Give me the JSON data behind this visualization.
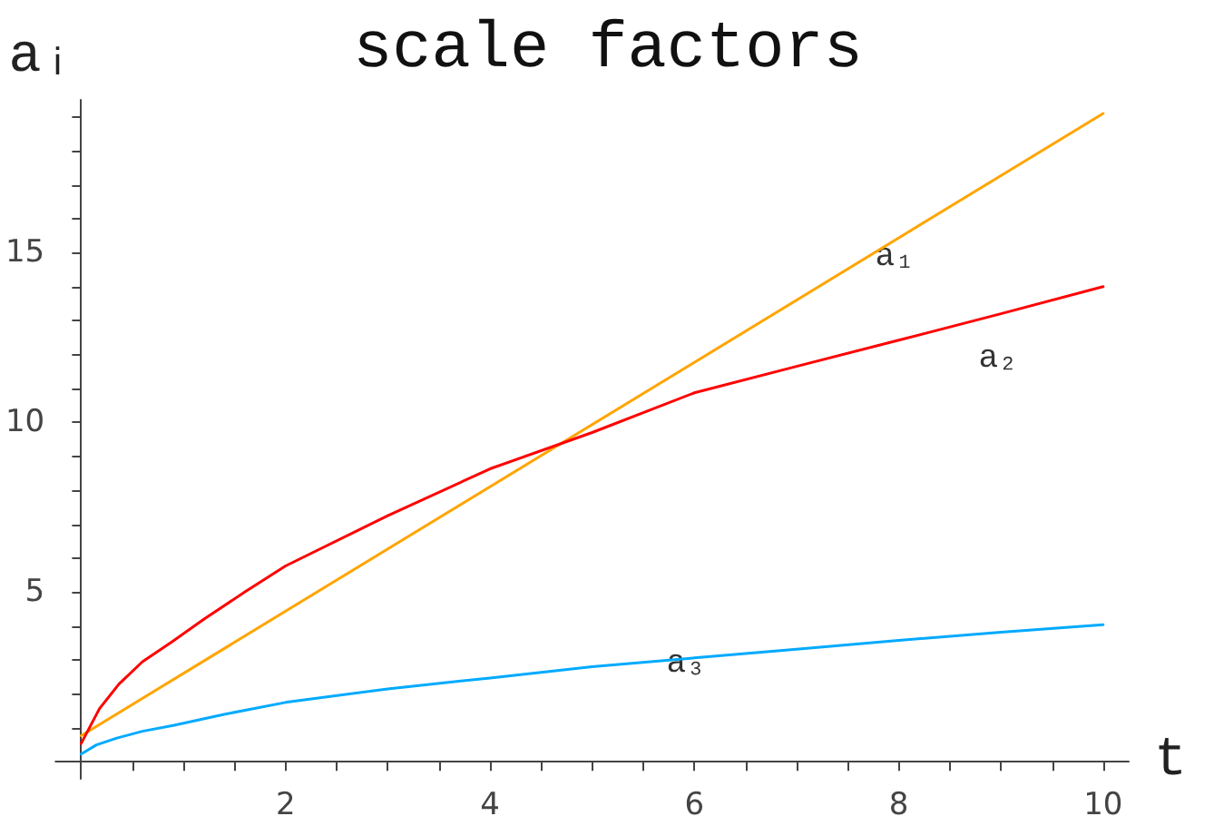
{
  "chart_data": {
    "type": "line",
    "title": "scale factors",
    "xlabel": "t",
    "ylabel": "aᵢ",
    "xlim": [
      -0.25,
      10.25
    ],
    "ylim": [
      -0.5,
      19.5
    ],
    "xticks": [
      {
        "value": 0.5,
        "label": null
      },
      {
        "value": 1,
        "label": null
      },
      {
        "value": 1.5,
        "label": null
      },
      2,
      {
        "value": 2.5,
        "label": null
      },
      {
        "value": 3,
        "label": null
      },
      {
        "value": 3.5,
        "label": null
      },
      4,
      {
        "value": 4.5,
        "label": null
      },
      {
        "value": 5,
        "label": null
      },
      {
        "value": 5.5,
        "label": null
      },
      6,
      {
        "value": 6.5,
        "label": null
      },
      {
        "value": 7,
        "label": null
      },
      {
        "value": 7.5,
        "label": null
      },
      8,
      {
        "value": 8.5,
        "label": null
      },
      {
        "value": 9,
        "label": null
      },
      {
        "value": 9.5,
        "label": null
      },
      10
    ],
    "yticks": [
      {
        "value": 1,
        "label": null
      },
      {
        "value": 2,
        "label": null
      },
      {
        "value": 3,
        "label": null
      },
      {
        "value": 4,
        "label": null
      },
      5,
      {
        "value": 6,
        "label": null
      },
      {
        "value": 7,
        "label": null
      },
      {
        "value": 8,
        "label": null
      },
      {
        "value": 9,
        "label": null
      },
      10,
      {
        "value": 11,
        "label": null
      },
      {
        "value": 12,
        "label": null
      },
      {
        "value": 13,
        "label": null
      },
      {
        "value": 14,
        "label": null
      },
      15,
      {
        "value": 16,
        "label": null
      },
      {
        "value": 17,
        "label": null
      },
      {
        "value": 18,
        "label": null
      },
      {
        "value": 19,
        "label": null
      }
    ],
    "grid": false,
    "legend": false,
    "marker": "none",
    "line_style": "solid",
    "series": [
      {
        "name": "a₁",
        "color": "#ffa500",
        "x": [
          0,
          10
        ],
        "values": [
          0.77,
          19.1
        ]
      },
      {
        "name": "a₂",
        "color": "#ff0000",
        "x": [
          0,
          0.18,
          0.37,
          0.6,
          0.89,
          1.2,
          1.6,
          2,
          3,
          4,
          5,
          6,
          7,
          8,
          9,
          10
        ],
        "values": [
          0.54,
          1.57,
          2.29,
          2.95,
          3.54,
          4.2,
          5.0,
          5.77,
          7.25,
          8.63,
          9.7,
          10.87,
          11.65,
          12.42,
          13.2,
          14.0
        ]
      },
      {
        "name": "a₃",
        "color": "#00aaff",
        "x": [
          0,
          0.15,
          0.35,
          0.6,
          0.9,
          1.4,
          2,
          3,
          4,
          5,
          6,
          7,
          8,
          9,
          10
        ],
        "values": [
          0.23,
          0.5,
          0.7,
          0.9,
          1.07,
          1.4,
          1.75,
          2.15,
          2.47,
          2.8,
          3.06,
          3.32,
          3.58,
          3.82,
          4.04
        ]
      }
    ]
  }
}
